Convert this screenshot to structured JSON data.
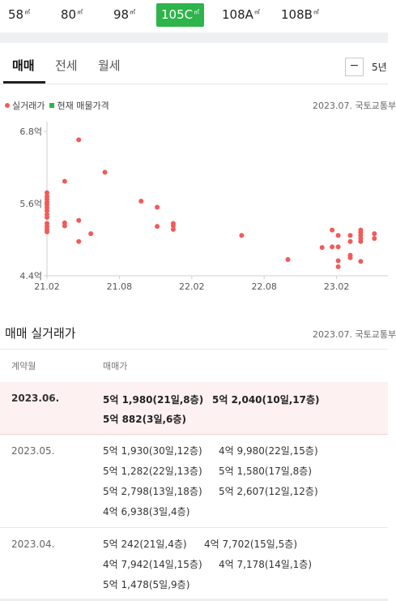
{
  "size_tabs": [
    {
      "label": "58",
      "unit": "㎡",
      "active": false
    },
    {
      "label": "80",
      "unit": "㎡",
      "active": false
    },
    {
      "label": "98",
      "unit": "㎡",
      "active": false
    },
    {
      "label": "105C",
      "unit": "㎡",
      "active": true
    },
    {
      "label": "108A",
      "unit": "㎡",
      "active": false
    },
    {
      "label": "108B",
      "unit": "㎡",
      "active": false
    }
  ],
  "deal_tabs": [
    {
      "label": "매매",
      "active": true
    },
    {
      "label": "전세",
      "active": false
    },
    {
      "label": "월세",
      "active": false
    }
  ],
  "controls": {
    "minus": "−",
    "period": "5년"
  },
  "legend": {
    "actual": "실거래가",
    "listing": "현재 매물가격"
  },
  "source_top": "2023.07. 국토교통부",
  "colors": {
    "accent": "#2db44a",
    "dot": "#f25a5a",
    "highlight_bg": "#fdf1f1"
  },
  "chart_data": {
    "type": "scatter",
    "title": "",
    "xlabel": "",
    "ylabel": "",
    "x_ticks": [
      "21.02",
      "21.08",
      "22.02",
      "22.08",
      "23.02"
    ],
    "y_ticks": [
      "6.8억",
      "5.6억",
      "4.4억"
    ],
    "xlim": [
      "2021-02",
      "2023-07"
    ],
    "ylim": [
      4.4,
      6.8
    ],
    "grid": false,
    "series": [
      {
        "name": "실거래가",
        "points": [
          [
            "2021-02-01",
            5.78
          ],
          [
            "2021-02-01",
            5.72
          ],
          [
            "2021-02-01",
            5.67
          ],
          [
            "2021-02-01",
            5.62
          ],
          [
            "2021-02-01",
            5.58
          ],
          [
            "2021-02-01",
            5.53
          ],
          [
            "2021-02-01",
            5.48
          ],
          [
            "2021-02-01",
            5.42
          ],
          [
            "2021-02-01",
            5.37
          ],
          [
            "2021-02-01",
            5.27
          ],
          [
            "2021-02-01",
            5.22
          ],
          [
            "2021-02-01",
            5.17
          ],
          [
            "2021-02-01",
            5.13
          ],
          [
            "2021-03-15",
            5.97
          ],
          [
            "2021-03-15",
            5.28
          ],
          [
            "2021-03-15",
            5.23
          ],
          [
            "2021-04-20",
            6.66
          ],
          [
            "2021-04-20",
            5.32
          ],
          [
            "2021-04-20",
            4.97
          ],
          [
            "2021-05-20",
            5.1
          ],
          [
            "2021-06-25",
            6.12
          ],
          [
            "2021-09-25",
            5.64
          ],
          [
            "2021-11-05",
            5.54
          ],
          [
            "2021-11-05",
            5.22
          ],
          [
            "2021-12-15",
            5.27
          ],
          [
            "2021-12-15",
            5.23
          ],
          [
            "2021-12-15",
            5.17
          ],
          [
            "2022-06-05",
            5.07
          ],
          [
            "2022-09-30",
            4.67
          ],
          [
            "2022-12-25",
            4.87
          ],
          [
            "2023-01-20",
            5.16
          ],
          [
            "2023-01-20",
            4.88
          ],
          [
            "2023-02-05",
            5.07
          ],
          [
            "2023-02-05",
            4.88
          ],
          [
            "2023-02-05",
            4.65
          ],
          [
            "2023-02-05",
            4.55
          ],
          [
            "2023-03-05",
            5.07
          ],
          [
            "2023-03-05",
            4.97
          ],
          [
            "2023-03-05",
            4.74
          ],
          [
            "2023-03-05",
            4.7
          ],
          [
            "2023-04-01",
            5.16
          ],
          [
            "2023-04-01",
            5.12
          ],
          [
            "2023-04-01",
            5.07
          ],
          [
            "2023-04-01",
            5.02
          ],
          [
            "2023-04-01",
            4.97
          ],
          [
            "2023-04-01",
            4.64
          ],
          [
            "2023-05-05",
            5.1
          ],
          [
            "2023-05-05",
            5.02
          ]
        ]
      }
    ]
  },
  "table": {
    "title": "매매 실거래가",
    "source": "2023.07. 국토교통부",
    "col_date": "계약월",
    "col_price": "매매가",
    "rows": [
      {
        "date": "2023.06.",
        "highlight": true,
        "deals": [
          "5억 1,980(21일,8층)",
          "5억 2,040(10일,17층)",
          "5억 882(3일,6층)"
        ]
      },
      {
        "date": "2023.05.",
        "highlight": false,
        "deals": [
          "5억 1,930(30일,12층)",
          "4억 9,980(22일,15층)",
          "5억 1,282(22일,13층)",
          "5억 1,580(17일,8층)",
          "5억 2,798(13일,18층)",
          "5억 2,607(12일,12층)",
          "4억 6,938(3일,4층)"
        ]
      },
      {
        "date": "2023.04.",
        "highlight": false,
        "deals": [
          "5억 242(21일,4층)",
          "4억 7,702(15일,5층)",
          "4억 7,942(14일,15층)",
          "4억 7,178(14일,1층)",
          "5억 1,478(5일,9층)"
        ]
      }
    ]
  }
}
